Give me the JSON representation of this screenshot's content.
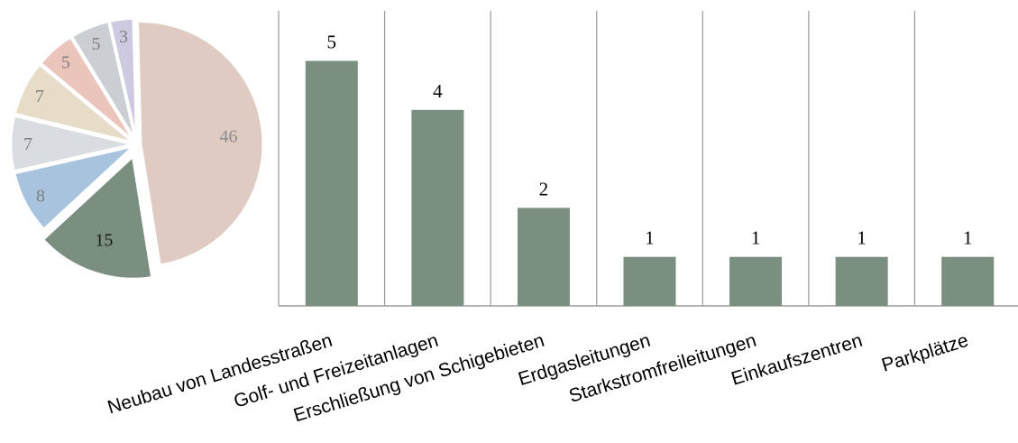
{
  "chart_data": [
    {
      "type": "pie",
      "exploded_slice": "15",
      "slices": [
        {
          "value": 46,
          "label": "46",
          "color": "#e0cbc2",
          "label_color": "#8c8c8c"
        },
        {
          "value": 15,
          "label": "15",
          "color": "#7a8f7f",
          "label_color": "#1a1a1a"
        },
        {
          "value": 8,
          "label": "8",
          "color": "#a8c3de",
          "label_color": "#7f7f7f"
        },
        {
          "value": 7,
          "label": "7",
          "color": "#d9dce0",
          "label_color": "#7f7f7f"
        },
        {
          "value": 7,
          "label": "7",
          "color": "#e6dcc8",
          "label_color": "#7f7f7f"
        },
        {
          "value": 5,
          "label": "5",
          "color": "#ebc4bb",
          "label_color": "#7f7f7f"
        },
        {
          "value": 5,
          "label": "5",
          "color": "#cbced3",
          "label_color": "#7f7f7f"
        },
        {
          "value": 3,
          "label": "3",
          "color": "#ccc9e0",
          "label_color": "#7f7f7f"
        }
      ]
    },
    {
      "type": "bar",
      "categories": [
        "Neubau von Landesstraßen",
        "Golf- und Freizeitanlagen",
        "Erschließung von Schigebieten",
        "Erdgasleitungen",
        "Starkstromfreileitungen",
        "Einkaufszentren",
        "Parkplätze"
      ],
      "values": [
        5,
        4,
        2,
        1,
        1,
        1,
        1
      ],
      "bar_color": "#7a8f7f",
      "gridlines": "vertical",
      "ylim": [
        0,
        6
      ]
    }
  ]
}
